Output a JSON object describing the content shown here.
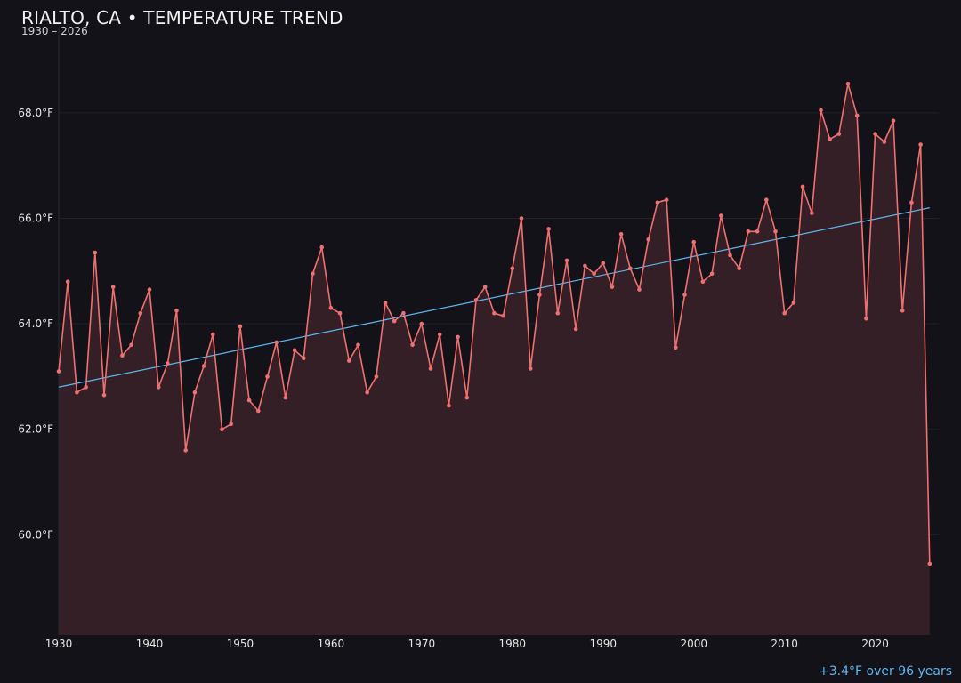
{
  "header": {
    "title": "RIALTO, CA • TEMPERATURE TREND",
    "subtitle": "1930 – 2026"
  },
  "footer": {
    "trend_note": "+3.4°F over 96 years"
  },
  "colors": {
    "background": "#131218",
    "line": "#f07070",
    "area_fill": "#351f26",
    "trend": "#5fb7f0",
    "grid": "#22212a"
  },
  "chart_data": {
    "type": "line",
    "title": "RIALTO, CA • TEMPERATURE TREND",
    "subtitle": "1930 – 2026",
    "xlabel": "",
    "ylabel": "",
    "xlim": [
      1930,
      2027
    ],
    "ylim": [
      58.1,
      69.6
    ],
    "x_ticks": [
      1930,
      1940,
      1950,
      1960,
      1970,
      1980,
      1990,
      2000,
      2010,
      2020
    ],
    "y_ticks": [
      60.0,
      62.0,
      64.0,
      66.0,
      68.0
    ],
    "y_tick_labels": [
      "60.0°F",
      "62.0°F",
      "64.0°F",
      "66.0°F",
      "68.0°F"
    ],
    "grid": true,
    "area_fill": true,
    "series": [
      {
        "x": [
          1930,
          1931,
          1932,
          1933,
          1934,
          1935,
          1936,
          1937,
          1938,
          1939,
          1940,
          1941,
          1942,
          1943,
          1944,
          1945,
          1946,
          1947,
          1948,
          1949,
          1950,
          1951,
          1952,
          1953,
          1954,
          1955,
          1956,
          1957,
          1958,
          1959,
          1960,
          1961,
          1962,
          1963,
          1964,
          1965,
          1966,
          1967,
          1968,
          1969,
          1970,
          1971,
          1972,
          1973,
          1974,
          1975,
          1976,
          1977,
          1978,
          1979,
          1980,
          1981,
          1982,
          1983,
          1984,
          1985,
          1986,
          1987,
          1988,
          1989,
          1990,
          1991,
          1992,
          1993,
          1994,
          1995,
          1996,
          1997,
          1998,
          1999,
          2000,
          2001,
          2002,
          2003,
          2004,
          2005,
          2006,
          2007,
          2008,
          2009,
          2010,
          2011,
          2012,
          2013,
          2014,
          2015,
          2016,
          2017,
          2018,
          2019,
          2020,
          2021,
          2022,
          2023,
          2024,
          2025,
          2026
        ],
        "values": [
          63.1,
          64.8,
          62.7,
          62.8,
          65.35,
          62.65,
          64.7,
          63.4,
          63.6,
          64.2,
          64.65,
          62.8,
          63.25,
          64.25,
          61.6,
          62.7,
          63.2,
          63.8,
          62.0,
          62.1,
          63.95,
          62.55,
          62.35,
          63.0,
          63.65,
          62.6,
          63.5,
          63.35,
          64.95,
          65.45,
          64.3,
          64.2,
          63.3,
          63.6,
          62.7,
          63.0,
          64.4,
          64.05,
          64.2,
          63.6,
          64.0,
          63.15,
          63.8,
          62.45,
          63.75,
          62.6,
          64.45,
          64.7,
          64.2,
          64.15,
          65.05,
          66.0,
          63.15,
          64.55,
          65.8,
          64.2,
          65.2,
          63.9,
          65.1,
          64.95,
          65.15,
          64.7,
          65.7,
          65.05,
          64.65,
          65.6,
          66.3,
          66.35,
          63.55,
          64.55,
          65.55,
          64.8,
          64.95,
          66.05,
          65.3,
          65.05,
          65.75,
          65.75,
          66.35,
          65.75,
          64.2,
          64.4,
          66.6,
          66.1,
          68.05,
          67.5,
          67.6,
          68.55,
          67.95,
          64.1,
          67.6,
          67.45,
          67.85,
          64.25,
          66.3,
          67.4,
          59.45
        ]
      }
    ],
    "trend_line": {
      "x": [
        1930,
        2026
      ],
      "values": [
        62.8,
        66.2
      ]
    },
    "annotations": [
      "+3.4°F over 96 years"
    ]
  }
}
